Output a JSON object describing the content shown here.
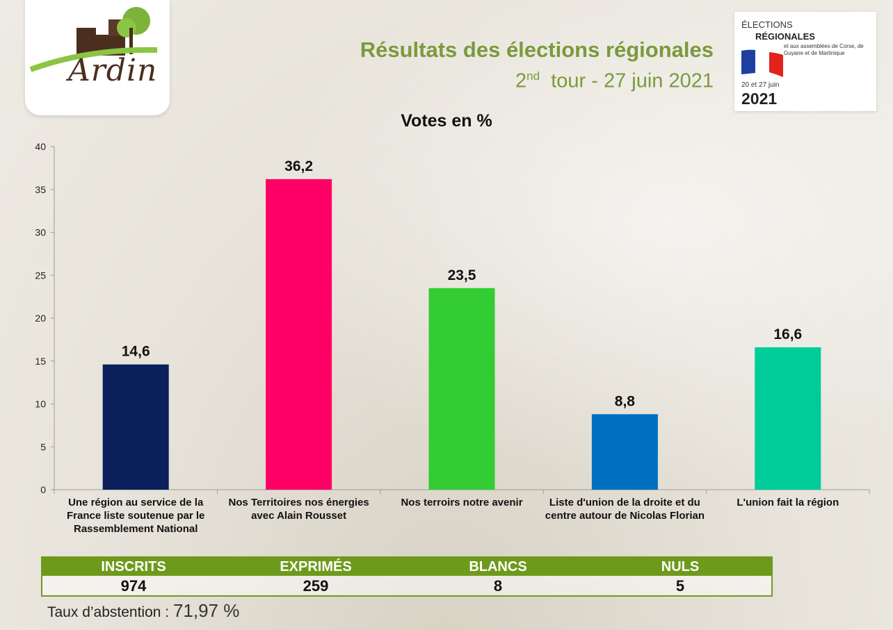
{
  "logo": {
    "text": "Ardin",
    "colors": {
      "brown": "#4a2e1e",
      "green": "#7cb33a"
    }
  },
  "header": {
    "title": "Résultats des élections régionales",
    "subtitle_ord": "2",
    "subtitle_sup": "nd",
    "subtitle_rest": "tour - 27 juin 2021"
  },
  "elections_card": {
    "line1": "ÉLECTIONS",
    "line2": "RÉGIONALES",
    "line3": "et aux assemblées de Corse, de Guyane et de Martinique",
    "line4": "20 et 27 juin",
    "line5": "2021"
  },
  "chart_data": {
    "type": "bar",
    "title": "Votes en %",
    "categories": [
      "Une région au service de la France liste soutenue par le Rassemblement National",
      "Nos Territoires nos énergies avec Alain Rousset",
      "Nos terroirs notre avenir",
      "Liste d'union de la droite et du centre autour de Nicolas Florian",
      "L'union fait la région"
    ],
    "values": [
      14.6,
      36.2,
      23.5,
      8.8,
      16.6
    ],
    "value_labels": [
      "14,6",
      "36,2",
      "23,5",
      "8,8",
      "16,6"
    ],
    "colors": [
      "#0b1f5c",
      "#ff0066",
      "#33cc33",
      "#0070c0",
      "#00cc99"
    ],
    "ylim": [
      0,
      40
    ],
    "yticks": [
      0,
      5,
      10,
      15,
      20,
      25,
      30,
      35,
      40
    ],
    "grid": false,
    "legend": "none"
  },
  "stats": {
    "headers": [
      "INSCRITS",
      "EXPRIMÉS",
      "BLANCS",
      "NULS"
    ],
    "values": [
      "974",
      "259",
      "8",
      "5"
    ],
    "accent": "#6e9a1c"
  },
  "abstention": {
    "label": "Taux d’abstention : ",
    "value": "71,97 %"
  }
}
